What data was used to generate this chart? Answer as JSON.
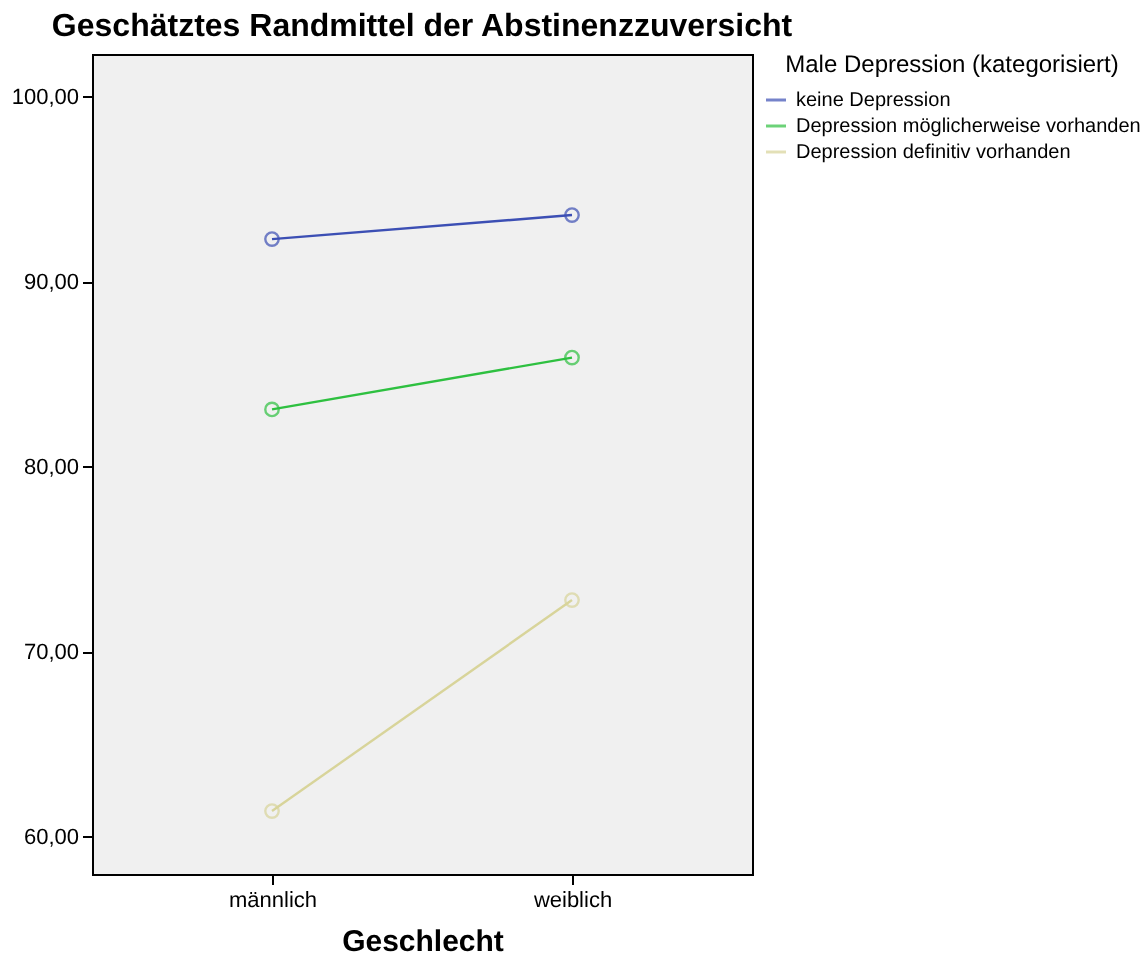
{
  "chart_data": {
    "type": "line",
    "title": "Geschätztes Randmittel der Abstinenzzuversicht",
    "xlabel": "Geschlecht",
    "legend_title": "Male Depression (kategorisiert)",
    "categories": [
      "männlich",
      "weiblich"
    ],
    "series": [
      {
        "name": "keine Depression",
        "color": "#3c4fb4",
        "values": [
          92.3,
          93.6
        ]
      },
      {
        "name": "Depression möglicherweise vorhanden",
        "color": "#2ec040",
        "values": [
          83.1,
          85.9
        ]
      },
      {
        "name": "Depression definitiv vorhanden",
        "color": "#d8d49a",
        "values": [
          61.4,
          72.8
        ]
      }
    ],
    "ylim": [
      58,
      102.3
    ],
    "yticks": [
      {
        "value": 60,
        "label": "60,00"
      },
      {
        "value": 70,
        "label": "70,00"
      },
      {
        "value": 80,
        "label": "80,00"
      },
      {
        "value": 90,
        "label": "90,00"
      },
      {
        "value": 100,
        "label": "100,00"
      }
    ],
    "grid": false,
    "legend": "right",
    "marker": "circle",
    "line_style": "solid"
  }
}
